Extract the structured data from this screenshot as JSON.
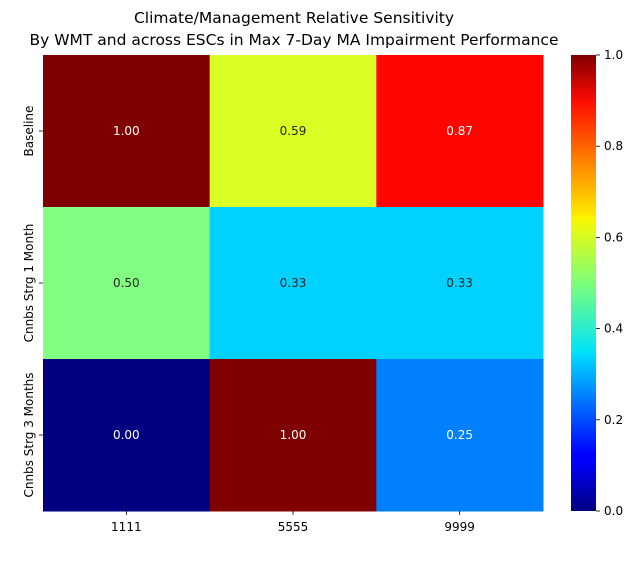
{
  "chart_data": {
    "type": "heatmap",
    "title_lines": [
      "Climate/Management Relative Sensitivity",
      "By WMT and across ESCs in Max 7-Day MA Impairment Performance"
    ],
    "x": [
      "1111",
      "5555",
      "9999"
    ],
    "y": [
      "Baseline",
      "Cnnbs Strg 1 Month",
      "Cnnbs Strg 3 Months"
    ],
    "values": [
      [
        1.0,
        0.59,
        0.87
      ],
      [
        0.5,
        0.33,
        0.33
      ],
      [
        0.0,
        1.0,
        0.25
      ]
    ],
    "cell_labels": [
      [
        "1.00",
        "0.59",
        "0.87"
      ],
      [
        "0.50",
        "0.33",
        "0.33"
      ],
      [
        "0.00",
        "1.00",
        "0.25"
      ]
    ],
    "colormap": "jet",
    "colorbar": {
      "range": [
        0,
        1
      ],
      "ticks": [
        0.0,
        0.2,
        0.4,
        0.6,
        0.8,
        1.0
      ],
      "tick_labels": [
        "0.0",
        "0.2",
        "0.4",
        "0.6",
        "0.8",
        "1.0"
      ]
    }
  }
}
